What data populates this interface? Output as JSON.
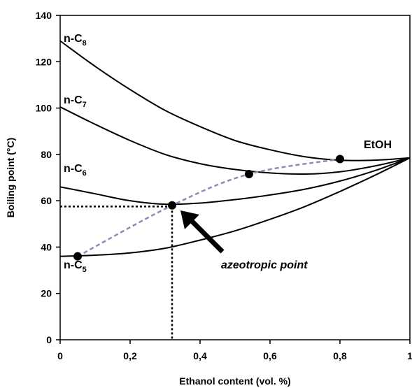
{
  "chart_data": {
    "type": "line",
    "xlabel": "Ethanol content (vol. %)",
    "ylabel": "Boiling point (°C)",
    "xlim": [
      0,
      1
    ],
    "ylim": [
      0,
      140
    ],
    "xticks": [
      0,
      0.2,
      0.4,
      0.6,
      0.8,
      1
    ],
    "xtick_labels": [
      "0",
      "0,2",
      "0,4",
      "0,6",
      "0,8",
      "1"
    ],
    "yticks": [
      0,
      20,
      40,
      60,
      80,
      100,
      120,
      140
    ],
    "ytick_labels": [
      "0",
      "20",
      "40",
      "60",
      "80",
      "100",
      "120",
      "140"
    ],
    "grid": false,
    "series": [
      {
        "name": "n-C8",
        "label_main": "n-C",
        "label_sub": "8",
        "x": [
          0,
          0.1,
          0.2,
          0.3,
          0.4,
          0.5,
          0.6,
          0.7,
          0.8,
          0.9,
          1.0
        ],
        "y": [
          129,
          118,
          108,
          99,
          92,
          86,
          82,
          79,
          77.5,
          77.5,
          78.5
        ]
      },
      {
        "name": "n-C7",
        "label_main": "n-C",
        "label_sub": "7",
        "x": [
          0,
          0.1,
          0.2,
          0.3,
          0.4,
          0.5,
          0.6,
          0.7,
          0.8,
          0.9,
          1.0
        ],
        "y": [
          100.5,
          93,
          86,
          80,
          76,
          73.5,
          72,
          71.5,
          72.5,
          75,
          78.5
        ]
      },
      {
        "name": "n-C6",
        "label_main": "n-C",
        "label_sub": "6",
        "x": [
          0,
          0.1,
          0.2,
          0.3,
          0.4,
          0.5,
          0.6,
          0.7,
          0.8,
          0.9,
          1.0
        ],
        "y": [
          66,
          63,
          60,
          58.5,
          59,
          60.5,
          62.5,
          65,
          68.5,
          73,
          78.5
        ]
      },
      {
        "name": "n-C5",
        "label_main": "n-C",
        "label_sub": "5",
        "x": [
          0,
          0.1,
          0.2,
          0.3,
          0.4,
          0.5,
          0.6,
          0.7,
          0.8,
          0.9,
          1.0
        ],
        "y": [
          36,
          36.5,
          37.5,
          39.5,
          43,
          47,
          52,
          57.5,
          64,
          71,
          78.5
        ]
      }
    ],
    "azeotropes": {
      "x": [
        0.05,
        0.32,
        0.54,
        0.8
      ],
      "y": [
        36,
        58,
        71.5,
        78
      ]
    },
    "ethanol_label": "EtOH",
    "annotation": "azeotropic point",
    "highlight": {
      "x": 0.32,
      "y": 57.5
    }
  }
}
